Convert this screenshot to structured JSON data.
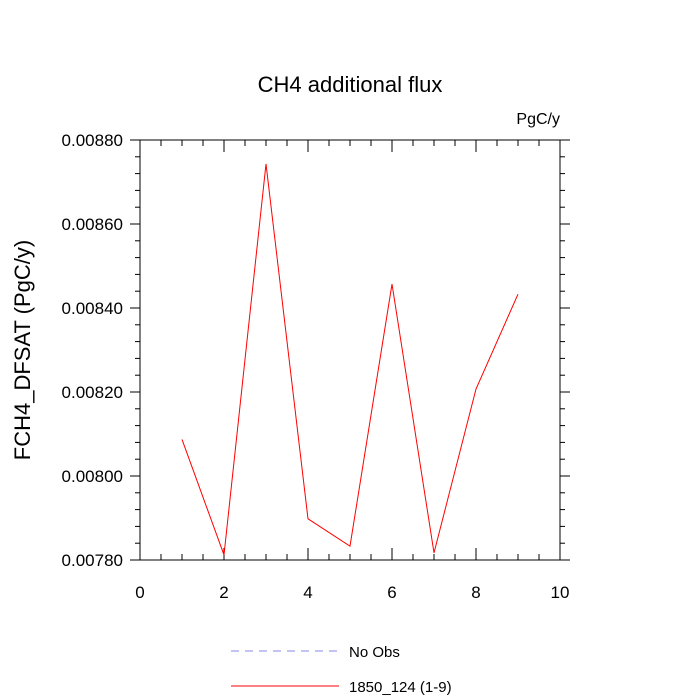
{
  "chart_data": {
    "type": "line",
    "title": "CH4 additional flux",
    "units_label": "PgC/y",
    "ylabel": "FCH4_DFSAT  (PgC/y)",
    "xlabel": "",
    "xlim": [
      0,
      10
    ],
    "ylim": [
      0.0078,
      0.0088
    ],
    "x_ticks": [
      0,
      2,
      4,
      6,
      8,
      10
    ],
    "x_tick_labels": [
      "0",
      "2",
      "4",
      "6",
      "8",
      "10"
    ],
    "y_ticks": [
      0.0078,
      0.008,
      0.0082,
      0.0084,
      0.0086,
      0.0088
    ],
    "y_tick_labels": [
      "0.00780",
      "0.00800",
      "0.00820",
      "0.00840",
      "0.00860",
      "0.00880"
    ],
    "grid": false,
    "legend_position": "bottom-center",
    "series": [
      {
        "name": "No Obs",
        "color": "#8a8ae6",
        "dash": "dashed",
        "x": [],
        "y": []
      },
      {
        "name": "1850_124 (1-9)",
        "color": "#ff0000",
        "dash": "solid",
        "x": [
          1,
          2,
          3,
          4,
          5,
          6,
          7,
          8,
          9
        ],
        "y": [
          0.008087,
          0.007812,
          0.008743,
          0.007898,
          0.007833,
          0.008457,
          0.007817,
          0.008207,
          0.008433
        ]
      }
    ]
  }
}
